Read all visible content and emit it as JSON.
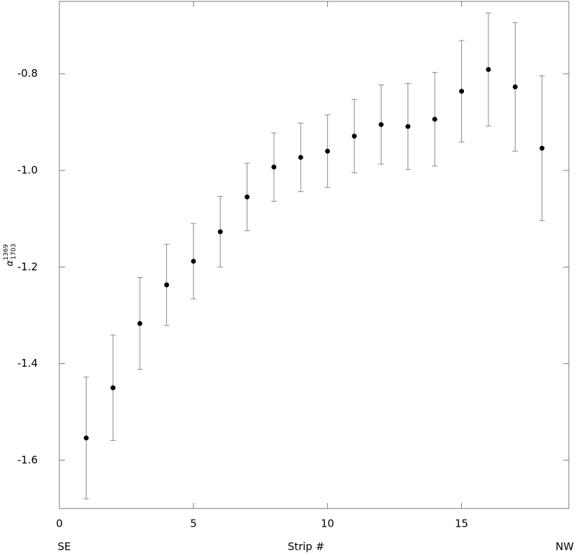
{
  "chart_data": {
    "type": "scatter",
    "x_label": "Strip #",
    "left_note": "SE",
    "right_note": "NW",
    "y_label": {
      "symbol": "α",
      "superscript": "1369",
      "subscript": "1703"
    },
    "xlim": [
      0,
      19
    ],
    "ylim": [
      -1.7,
      -0.65
    ],
    "xticks": [
      0,
      5,
      10,
      15
    ],
    "yticks": [
      -1.6,
      -1.4,
      -1.2,
      {
        "value": -1,
        "label": "-1.0"
      },
      -0.8
    ],
    "error_color": "#888888",
    "series": [
      {
        "color": "#000000",
        "x": [
          1,
          2,
          3,
          4,
          5,
          6,
          7,
          8,
          9,
          10,
          11,
          12,
          13,
          14,
          15,
          16,
          17,
          18
        ],
        "values": [
          -1.554,
          -1.45,
          -1.317,
          -1.237,
          -1.188,
          -1.127,
          -1.055,
          -0.993,
          -0.973,
          -0.96,
          -0.929,
          -0.905,
          -0.909,
          -0.894,
          -0.836,
          -0.791,
          -0.827,
          -0.954
        ],
        "errors": [
          0.126,
          0.109,
          0.095,
          0.084,
          0.078,
          0.073,
          0.07,
          0.071,
          0.071,
          0.075,
          0.076,
          0.082,
          0.089,
          0.097,
          0.105,
          0.117,
          0.133,
          0.15
        ]
      }
    ]
  }
}
